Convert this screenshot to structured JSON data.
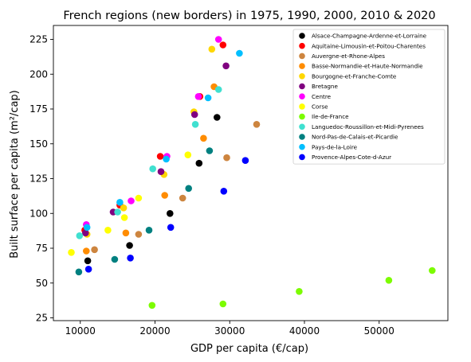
{
  "chart_data": {
    "type": "scatter",
    "title": "French regions (new borders) in 1975, 1990, 2000, 2010 & 2020",
    "xlabel": "GDP per capita (€/cap)",
    "ylabel": "Built surface per capita (m²/cap)",
    "xlim": [
      6400,
      59200
    ],
    "ylim": [
      23,
      235
    ],
    "xticks": [
      10000,
      20000,
      30000,
      40000,
      50000
    ],
    "yticks": [
      25,
      50,
      75,
      100,
      125,
      150,
      175,
      200,
      225
    ],
    "xtick_labels": [
      "10000",
      "20000",
      "30000",
      "40000",
      "50000"
    ],
    "ytick_labels": [
      "25",
      "50",
      "75",
      "100",
      "125",
      "150",
      "175",
      "200",
      "225"
    ],
    "grid": false,
    "legend_position": "top-right",
    "series": [
      {
        "name": "Alsace-Champagne-Ardenne-et-Lorraine",
        "color": "#000000",
        "points": [
          [
            11000,
            66
          ],
          [
            16600,
            77
          ],
          [
            22000,
            100
          ],
          [
            25900,
            136
          ],
          [
            28300,
            169
          ]
        ]
      },
      {
        "name": "Aquitaine-Limousin-et-Poitou-Charentes",
        "color": "#ff0000",
        "points": [
          [
            10600,
            88
          ],
          [
            15300,
            106
          ],
          [
            20700,
            141
          ],
          [
            26000,
            184
          ],
          [
            29100,
            221
          ]
        ]
      },
      {
        "name": "Auvergne-et-Rhone-Alpes",
        "color": "#cd853f",
        "points": [
          [
            11900,
            74
          ],
          [
            17800,
            85
          ],
          [
            23700,
            111
          ],
          [
            29600,
            140
          ],
          [
            33600,
            164
          ]
        ]
      },
      {
        "name": "Basse-Normandie-et-Haute-Normandie",
        "color": "#ff8c00",
        "points": [
          [
            10800,
            73
          ],
          [
            16100,
            86
          ],
          [
            21300,
            113
          ],
          [
            26500,
            154
          ],
          [
            27900,
            191
          ]
        ]
      },
      {
        "name": "Bourgogne-et-Franche-Comte",
        "color": "#ffd700",
        "points": [
          [
            10900,
            85
          ],
          [
            15800,
            104
          ],
          [
            21200,
            128
          ],
          [
            25200,
            173
          ],
          [
            27600,
            218
          ]
        ]
      },
      {
        "name": "Bretagne",
        "color": "#800080",
        "points": [
          [
            10700,
            86
          ],
          [
            14400,
            101
          ],
          [
            20800,
            130
          ],
          [
            25300,
            171
          ],
          [
            29500,
            206
          ]
        ]
      },
      {
        "name": "Centre",
        "color": "#ff00ff",
        "points": [
          [
            10800,
            92
          ],
          [
            16800,
            109
          ],
          [
            21600,
            141
          ],
          [
            25800,
            184
          ],
          [
            28500,
            225
          ]
        ]
      },
      {
        "name": "Corse",
        "color": "#ffff00",
        "points": [
          [
            8800,
            72
          ],
          [
            13700,
            88
          ],
          [
            15900,
            97
          ],
          [
            17800,
            111
          ],
          [
            24400,
            142
          ]
        ]
      },
      {
        "name": "Ile-de-France",
        "color": "#7cfc00",
        "points": [
          [
            19600,
            34
          ],
          [
            29100,
            35
          ],
          [
            39300,
            44
          ],
          [
            51300,
            52
          ],
          [
            57100,
            59
          ]
        ]
      },
      {
        "name": "Languedoc-Roussillon-et-Midi-Pyrenees",
        "color": "#40e0d0",
        "points": [
          [
            9900,
            84
          ],
          [
            15000,
            101
          ],
          [
            19700,
            132
          ],
          [
            25400,
            164
          ],
          [
            28500,
            189
          ]
        ]
      },
      {
        "name": "Nord-Pas-de-Calais-et-Picardie",
        "color": "#008080",
        "points": [
          [
            9800,
            58
          ],
          [
            14600,
            67
          ],
          [
            19200,
            88
          ],
          [
            24500,
            118
          ],
          [
            27300,
            145
          ]
        ]
      },
      {
        "name": "Pays-de-la-Loire",
        "color": "#00bfff",
        "points": [
          [
            10900,
            90
          ],
          [
            15300,
            108
          ],
          [
            21500,
            139
          ],
          [
            27100,
            183
          ],
          [
            31300,
            215
          ]
        ]
      },
      {
        "name": "Provence-Alpes-Cote-d-Azur",
        "color": "#0000ff",
        "points": [
          [
            11100,
            60
          ],
          [
            16700,
            68
          ],
          [
            22100,
            90
          ],
          [
            29200,
            116
          ],
          [
            32100,
            138
          ]
        ]
      }
    ]
  }
}
